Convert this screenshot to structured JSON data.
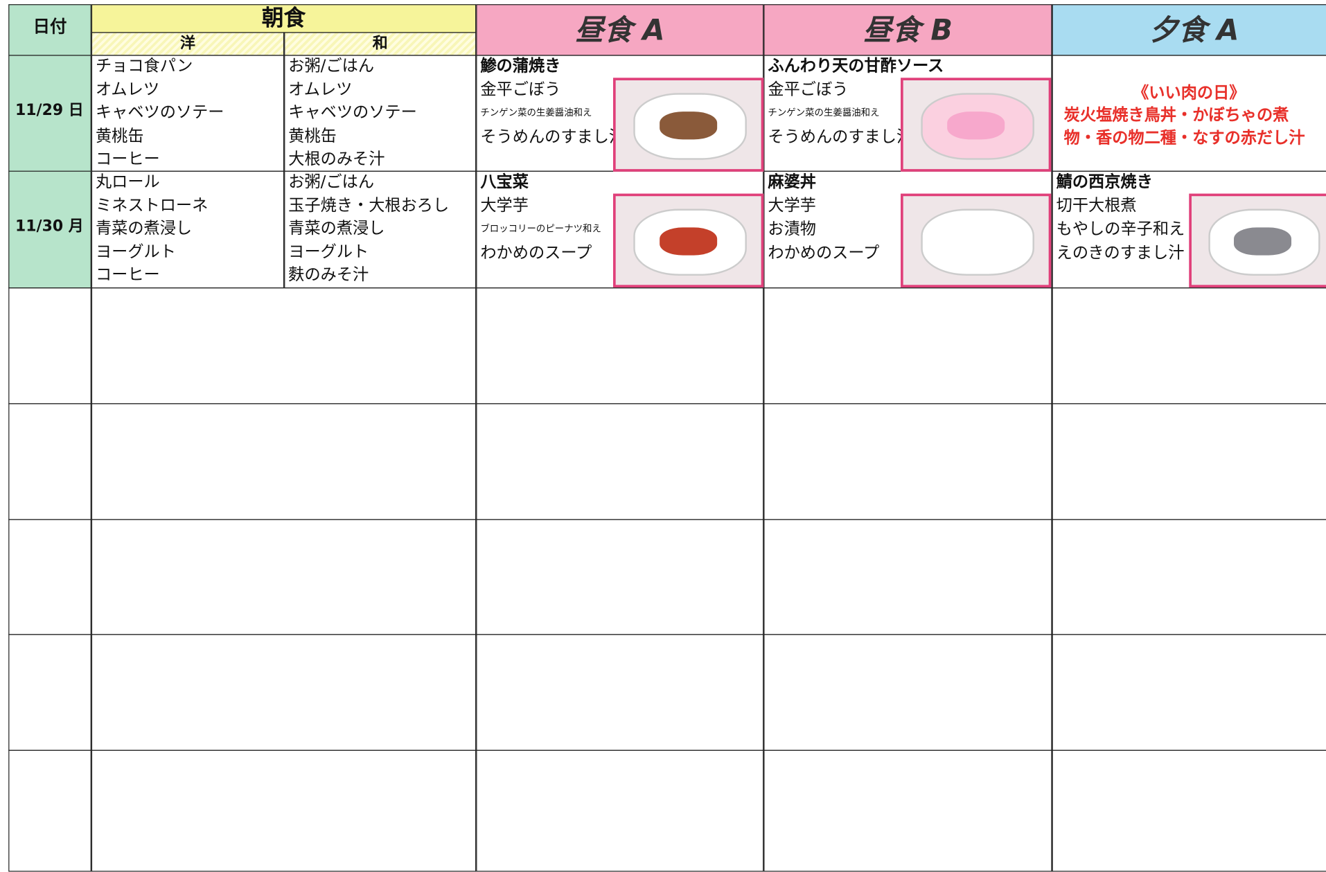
{
  "header": {
    "date_label": "日付",
    "breakfast": "朝食",
    "western": "洋",
    "japanese": "和",
    "lunch_a": "昼食 A",
    "lunch_b": "昼食 B",
    "dinner_a": "夕食 A"
  },
  "days": [
    {
      "date": "11/29 日",
      "western": [
        "チョコ食パン",
        "オムレツ",
        "キャベツのソテー",
        "黄桃缶",
        "コーヒー"
      ],
      "japanese": [
        "お粥/ごはん",
        "オムレツ",
        "キャベツのソテー",
        "黄桃缶",
        "大根のみそ汁"
      ],
      "lunch_a": {
        "main": "鯵の蒲焼き",
        "sides": [
          "金平ごぼう",
          "チンゲン菜の生姜醤油和え",
          "そうめんのすまし汁"
        ]
      },
      "lunch_b": {
        "main": "ふんわり天の甘酢ソース",
        "sides": [
          "金平ごぼう",
          "チンゲン菜の生姜醤油和え",
          "そうめんのすまし汁"
        ]
      },
      "dinner_a": {
        "event": "《いい肉の日》",
        "lines": [
          "炭火塩焼き鳥丼・かぼちゃの煮",
          "物・香の物二種・なすの赤だし汁"
        ]
      }
    },
    {
      "date": "11/30 月",
      "western": [
        "丸ロール",
        "ミネストローネ",
        "青菜の煮浸し",
        "ヨーグルト",
        "コーヒー"
      ],
      "japanese": [
        "お粥/ごはん",
        "玉子焼き・大根おろし",
        "青菜の煮浸し",
        "ヨーグルト",
        "麩のみそ汁"
      ],
      "lunch_a": {
        "main": "八宝菜",
        "sides": [
          "大学芋",
          "ブロッコリーのピーナツ和え",
          "わかめのスープ"
        ]
      },
      "lunch_b": {
        "main": "麻婆丼",
        "sides": [
          "大学芋",
          "お漬物",
          "わかめのスープ"
        ]
      },
      "dinner_a": {
        "main": "鯖の西京焼き",
        "sides": [
          "切干大根煮",
          "もやしの辛子和え",
          "えのきのすまし汁"
        ]
      }
    }
  ]
}
